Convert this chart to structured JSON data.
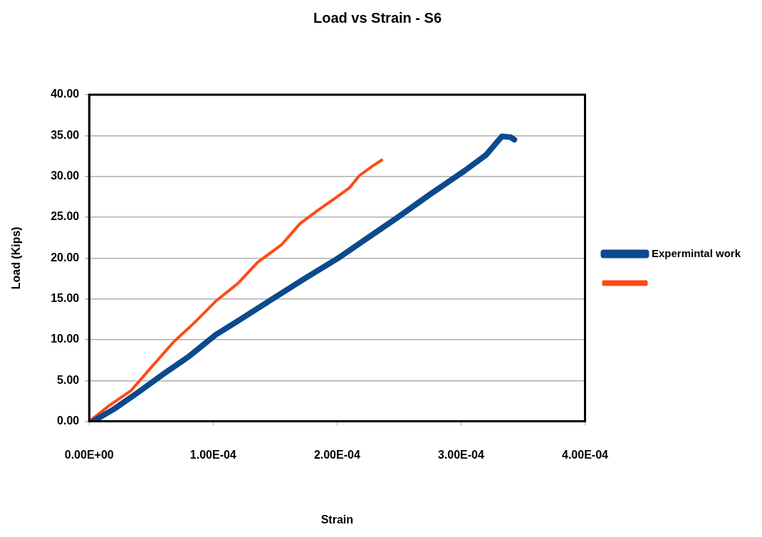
{
  "chart_data": {
    "type": "line",
    "title": "Load vs Strain - S6",
    "xlabel": "Strain",
    "ylabel": "Load (Kips)",
    "series": [
      {
        "name": "Expermintal work",
        "color": "#0b4a8c",
        "x": [
          3e-06,
          2e-05,
          4e-05,
          6e-05,
          8e-05,
          0.000102,
          0.00012,
          0.00015,
          0.000175,
          0.0002,
          0.000225,
          0.00025,
          0.000275,
          0.000303,
          0.00032,
          0.000333,
          0.00034,
          0.000343
        ],
        "values": [
          0,
          1.5,
          3.6,
          5.8,
          7.9,
          10.6,
          12.3,
          15.2,
          17.6,
          19.9,
          22.5,
          25.1,
          27.8,
          30.7,
          32.6,
          34.9,
          34.8,
          34.5
        ]
      },
      {
        "color": "#ff4a14",
        "x": [
          0,
          1.5e-05,
          3.4e-05,
          5e-05,
          6.8e-05,
          8.5e-05,
          0.000102,
          0.00012,
          0.000136,
          0.000155,
          0.00017,
          0.000185,
          0.0002,
          0.00021,
          0.000218,
          0.000228,
          0.000236
        ],
        "values": [
          0,
          1.8,
          3.8,
          6.6,
          9.7,
          12.1,
          14.7,
          16.9,
          19.5,
          21.6,
          24.2,
          25.9,
          27.5,
          28.6,
          30.1,
          31.2,
          32.0
        ]
      }
    ],
    "xlim": [
      0,
      0.0004
    ],
    "xticks": [
      {
        "value": 0,
        "label": "0.00E+00"
      },
      {
        "value": 0.0001,
        "label": "1.00E-04"
      },
      {
        "value": 0.0002,
        "label": "2.00E-04"
      },
      {
        "value": 0.0003,
        "label": "3.00E-04"
      },
      {
        "value": 0.0004,
        "label": "4.00E-04"
      }
    ],
    "ylim": [
      0,
      40
    ],
    "yticks": [
      {
        "value": 0,
        "label": "0.00"
      },
      {
        "value": 5,
        "label": "5.00"
      },
      {
        "value": 10,
        "label": "10.00"
      },
      {
        "value": 15,
        "label": "15.00"
      },
      {
        "value": 20,
        "label": "20.00"
      },
      {
        "value": 25,
        "label": "25.00"
      },
      {
        "value": 30,
        "label": "30.00"
      },
      {
        "value": 35,
        "label": "35.00"
      },
      {
        "value": 40,
        "label": "40.00"
      }
    ],
    "grid": "y",
    "legend": "right",
    "marker": "none",
    "line_style": "solid"
  }
}
